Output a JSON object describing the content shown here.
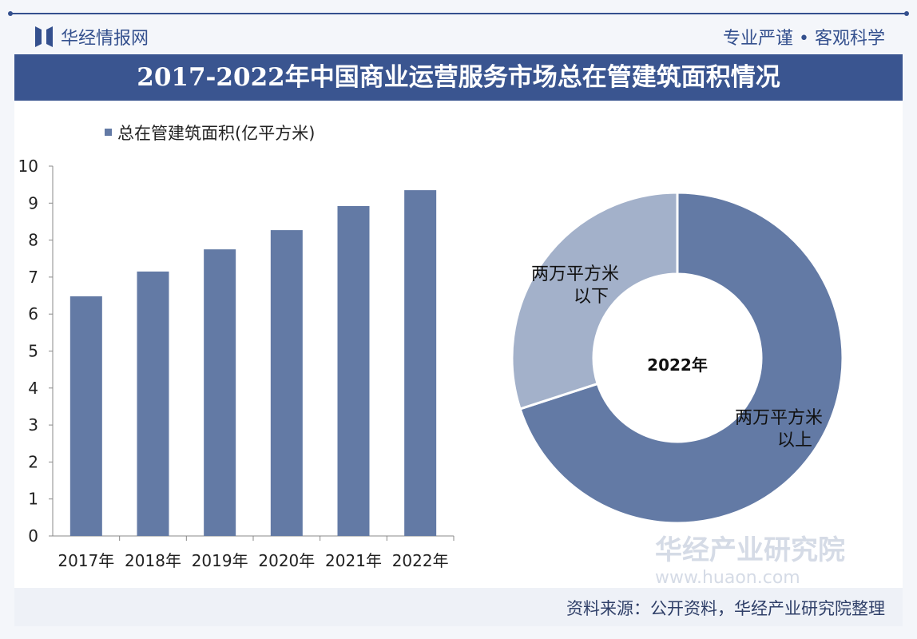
{
  "header": {
    "brand": "华经情报网",
    "slogan": "专业严谨 • 客观科学",
    "title": "2017-2022年中国商业运营服务市场总在管建筑面积情况"
  },
  "footer": {
    "source": "资料来源：公开资料，华经产业研究院整理"
  },
  "watermark": {
    "text": "华经产业研究院",
    "url": "www.huaon.com"
  },
  "colors": {
    "primary": "#637aa5",
    "light": "#a3b1ca",
    "title_bg": "#3a5590"
  },
  "chart_data": [
    {
      "type": "bar",
      "categories": [
        "2017年",
        "2018年",
        "2019年",
        "2020年",
        "2021年",
        "2022年"
      ],
      "series": [
        {
          "name": "总在管建筑面积(亿平方米)",
          "values": [
            6.48,
            7.15,
            7.75,
            8.27,
            8.92,
            9.35
          ]
        }
      ],
      "ylim": [
        0,
        10
      ],
      "yticks": [
        0,
        1,
        2,
        3,
        4,
        5,
        6,
        7,
        8,
        9,
        10
      ],
      "legend": "top-left",
      "grid": false
    },
    {
      "type": "pie",
      "donut": true,
      "center_label": "2022年",
      "slices": [
        {
          "label": "两万平方米以上",
          "value": 70
        },
        {
          "label": "两万平方米以下",
          "value": 30
        }
      ]
    }
  ]
}
